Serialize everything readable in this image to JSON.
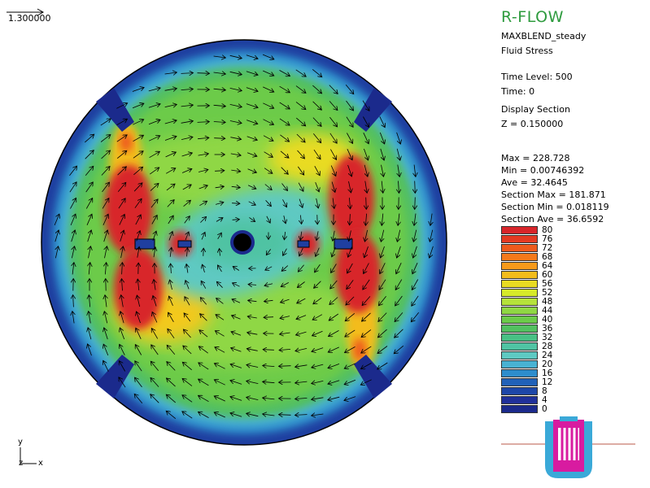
{
  "scale": {
    "arrow_label": "1.300000"
  },
  "axes": {
    "y": "y",
    "z": "z",
    "x": "x"
  },
  "panel": {
    "title": "R-FLOW",
    "model": "MAXBLEND_steady",
    "quantity": "Fluid Stress",
    "time_level": "Time Level: 500",
    "time": "Time: 0",
    "display_section": "Display Section",
    "z_value": "Z = 0.150000",
    "stats": [
      "Max = 228.728",
      "Min = 0.00746392",
      "Ave = 32.4645",
      "Section Max = 181.871",
      "Section Min = 0.018119",
      "Section Ave = 36.6592"
    ]
  },
  "legend": {
    "levels": [
      "80",
      "76",
      "72",
      "68",
      "64",
      "60",
      "56",
      "52",
      "48",
      "44",
      "40",
      "36",
      "32",
      "28",
      "24",
      "20",
      "16",
      "12",
      "8",
      "4",
      "0"
    ],
    "colors": [
      "#d8252a",
      "#e43a22",
      "#ee5a1c",
      "#f4791a",
      "#f79a1a",
      "#f3bc1b",
      "#e9db22",
      "#d6ea2a",
      "#b5e23a",
      "#8fd744",
      "#6ccb4a",
      "#52c060",
      "#48c084",
      "#4fc3a3",
      "#5ec9c2",
      "#48b2d2",
      "#2e8dcc",
      "#2161b8",
      "#1d46a8",
      "#20309a",
      "#1b2a8c"
    ]
  },
  "colors": {
    "outer_ring": "#1f3fa0",
    "bulk": "#6ccb4a",
    "hot": "#d8252a",
    "warm": "#f3c91b",
    "core": "#5ec9c2",
    "title_green": "#2e9b3e"
  },
  "icons": [
    "reactor-vessel-icon",
    "scale-arrow-icon",
    "axis-triad-icon"
  ]
}
